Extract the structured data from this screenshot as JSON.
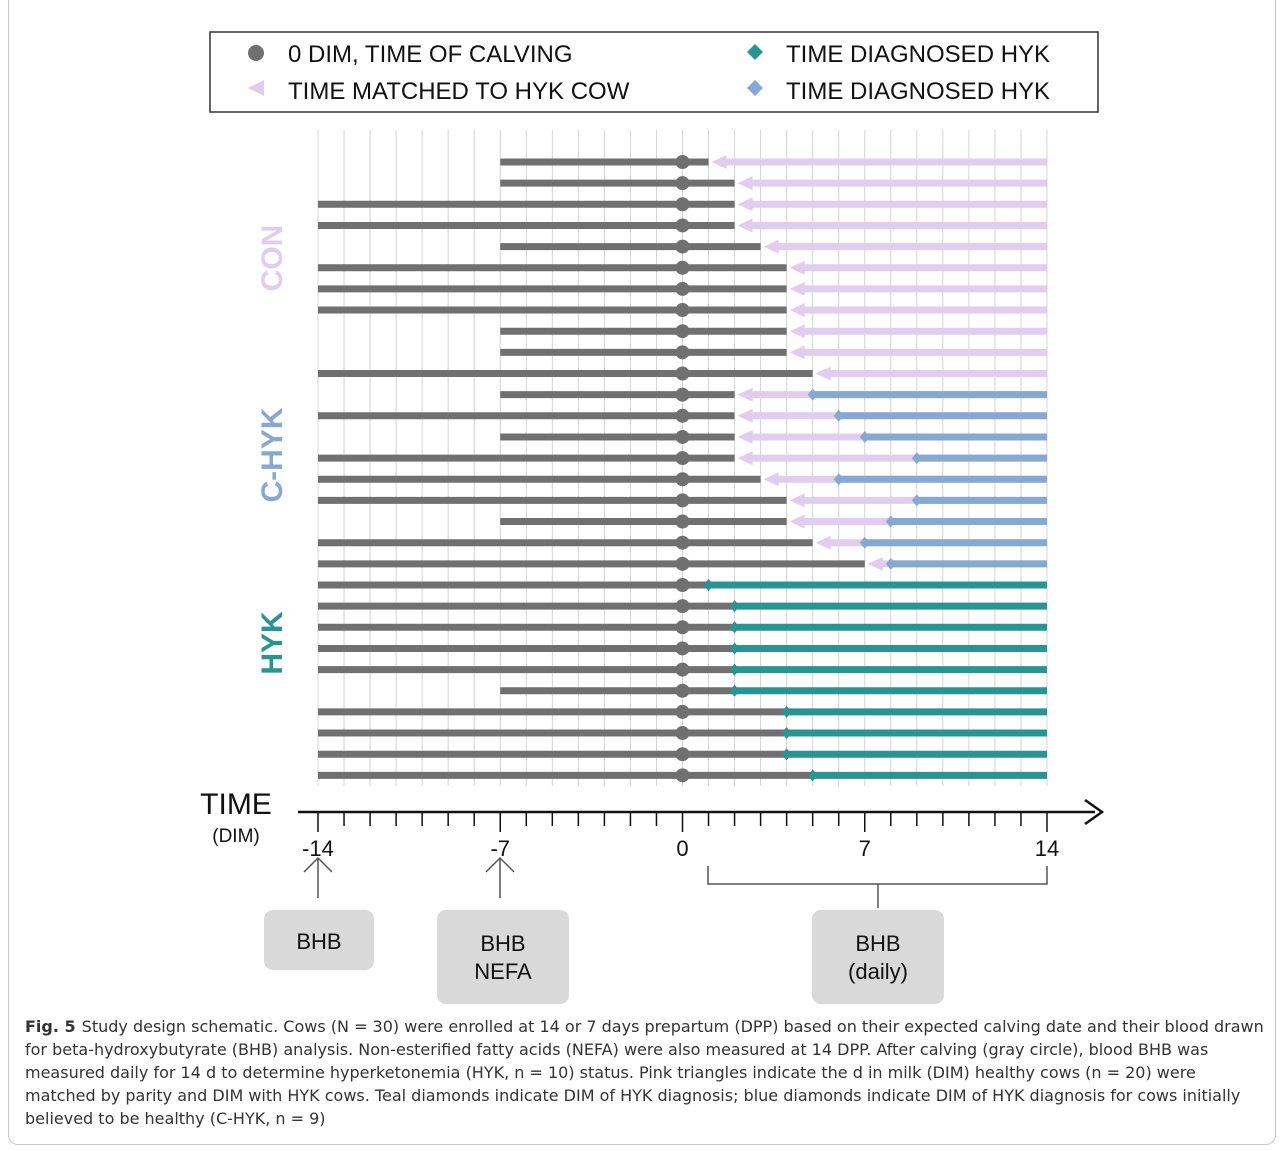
{
  "legend": {
    "items": [
      {
        "label": "0 DIM, TIME OF CALVING",
        "marker": "circle",
        "color": "#707070"
      },
      {
        "label": "TIME DIAGNOSED HYK",
        "marker": "diamond",
        "color": "#2a9393"
      },
      {
        "label": "TIME MATCHED TO HYK COW",
        "marker": "triangle",
        "color": "#e1cdf0"
      },
      {
        "label": "TIME DIAGNOSED HYK",
        "marker": "diamond",
        "color": "#86a9d4"
      }
    ]
  },
  "groups": [
    {
      "label": "CON",
      "color": "#e1cdf0"
    },
    {
      "label": "C-HYK",
      "color": "#86a9d4"
    },
    {
      "label": "HYK",
      "color": "#2a9393"
    }
  ],
  "axis": {
    "title": "TIME",
    "subtitle": "(DIM)",
    "min": -14,
    "max": 14,
    "ticks": [
      "-14",
      "-7",
      "0",
      "7",
      "14"
    ]
  },
  "sample_boxes": [
    {
      "lines": [
        "BHB"
      ]
    },
    {
      "lines": [
        "BHB",
        "NEFA"
      ]
    },
    {
      "lines": [
        "BHB",
        "(daily)"
      ]
    }
  ],
  "colors": {
    "gray": "#707070",
    "pink": "#e1cdf0",
    "blue": "#86a9d4",
    "teal": "#2a9393",
    "box": "#d9d9d9"
  },
  "chart_data": {
    "type": "gantt",
    "x_unit": "DIM",
    "rows": [
      {
        "group": "CON",
        "start": -7,
        "matched": 1
      },
      {
        "group": "CON",
        "start": -7,
        "matched": 2
      },
      {
        "group": "CON",
        "start": -14,
        "matched": 2
      },
      {
        "group": "CON",
        "start": -14,
        "matched": 2
      },
      {
        "group": "CON",
        "start": -7,
        "matched": 3
      },
      {
        "group": "CON",
        "start": -14,
        "matched": 4
      },
      {
        "group": "CON",
        "start": -14,
        "matched": 4
      },
      {
        "group": "CON",
        "start": -14,
        "matched": 4
      },
      {
        "group": "CON",
        "start": -7,
        "matched": 4
      },
      {
        "group": "CON",
        "start": -7,
        "matched": 4
      },
      {
        "group": "CON",
        "start": -14,
        "matched": 5
      },
      {
        "group": "C-HYK",
        "start": -7,
        "matched": 2,
        "diagnosed": 5
      },
      {
        "group": "C-HYK",
        "start": -14,
        "matched": 2,
        "diagnosed": 6
      },
      {
        "group": "C-HYK",
        "start": -7,
        "matched": 2,
        "diagnosed": 7
      },
      {
        "group": "C-HYK",
        "start": -14,
        "matched": 2,
        "diagnosed": 9
      },
      {
        "group": "C-HYK",
        "start": -14,
        "matched": 3,
        "diagnosed": 6
      },
      {
        "group": "C-HYK",
        "start": -14,
        "matched": 4,
        "diagnosed": 9
      },
      {
        "group": "C-HYK",
        "start": -7,
        "matched": 4,
        "diagnosed": 8
      },
      {
        "group": "C-HYK",
        "start": -14,
        "matched": 5,
        "diagnosed": 7
      },
      {
        "group": "C-HYK",
        "start": -14,
        "matched": 7,
        "diagnosed": 8
      },
      {
        "group": "HYK",
        "start": -14,
        "diagnosed": 1
      },
      {
        "group": "HYK",
        "start": -14,
        "diagnosed": 2
      },
      {
        "group": "HYK",
        "start": -14,
        "diagnosed": 2
      },
      {
        "group": "HYK",
        "start": -14,
        "diagnosed": 2
      },
      {
        "group": "HYK",
        "start": -14,
        "diagnosed": 2
      },
      {
        "group": "HYK",
        "start": -7,
        "diagnosed": 2
      },
      {
        "group": "HYK",
        "start": -14,
        "diagnosed": 4
      },
      {
        "group": "HYK",
        "start": -14,
        "diagnosed": 4
      },
      {
        "group": "HYK",
        "start": -14,
        "diagnosed": 4
      },
      {
        "group": "HYK",
        "start": -14,
        "diagnosed": 5
      }
    ]
  },
  "caption": {
    "label": "Fig. 5",
    "text": "Study design schematic. Cows (N = 30) were enrolled at 14 or 7 days prepartum (DPP) based on their expected calving date and their blood drawn for beta-hydroxybutyrate (BHB) analysis. Non-esterified fatty acids (NEFA) were also measured at 14 DPP. After calving (gray circle), blood BHB was measured daily for 14 d to determine hyperketonemia (HYK, n = 10) status. Pink triangles indicate the d in milk (DIM) healthy cows (n = 20) were matched by parity and DIM with HYK cows. Teal diamonds indicate DIM of HYK diagnosis; blue diamonds indicate DIM of HYK diagnosis for cows initially believed to be healthy (C-HYK, n = 9)"
  }
}
